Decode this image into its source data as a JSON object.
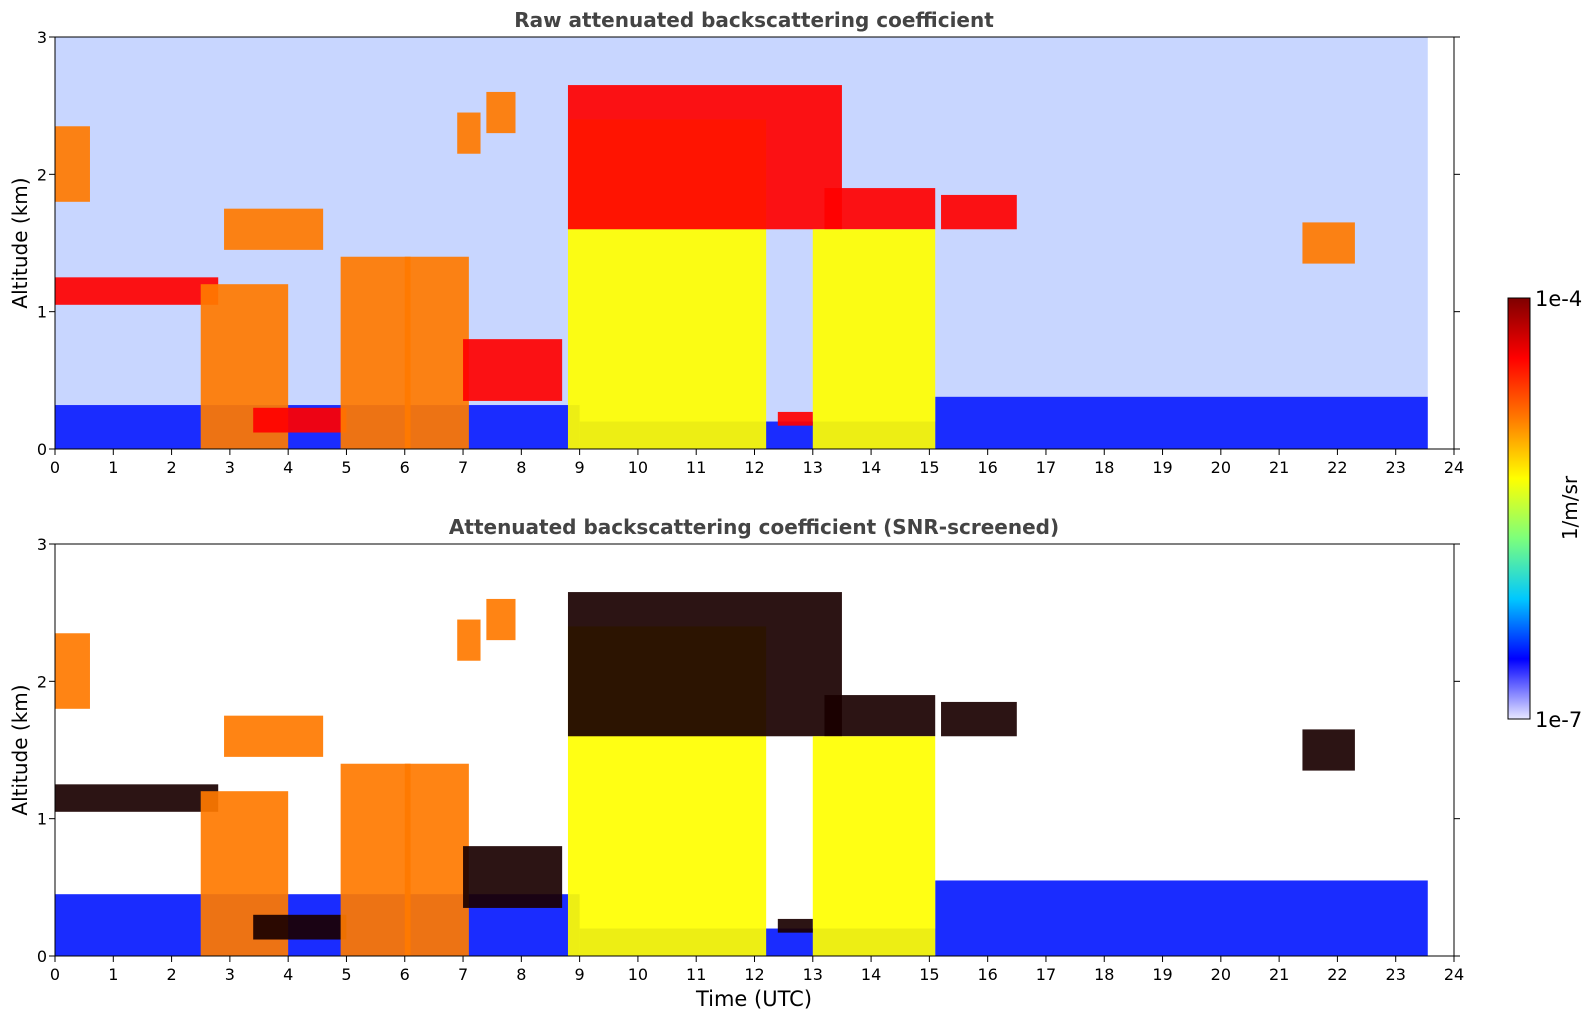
{
  "chart_data": [
    {
      "type": "heatmap",
      "title": "Raw attenuated backscattering coefficient",
      "xlabel": "",
      "ylabel": "Altitude (km)",
      "xlim": [
        0,
        24
      ],
      "ylim": [
        0,
        3
      ],
      "x_ticks": [
        "0",
        "1",
        "2",
        "3",
        "4",
        "5",
        "6",
        "7",
        "8",
        "9",
        "10",
        "11",
        "12",
        "13",
        "14",
        "15",
        "16",
        "17",
        "18",
        "19",
        "20",
        "21",
        "22",
        "23",
        "24"
      ],
      "y_ticks": [
        "0",
        "1",
        "2",
        "3"
      ],
      "data_end_time": 23.55,
      "surface_layer": {
        "segments": [
          [
            0,
            9.0,
            0.32
          ],
          [
            9.0,
            15.1,
            0.2
          ],
          [
            15.1,
            23.55,
            0.38
          ]
        ]
      },
      "cloud_layers": [
        {
          "name": "early low cloud",
          "start": 0.0,
          "end": 2.8,
          "base": 1.05,
          "top": 1.25,
          "value": 5.6
        },
        {
          "name": "early high cloud",
          "start": 0.0,
          "end": 0.6,
          "base": 1.8,
          "top": 2.35,
          "value": 5.0
        },
        {
          "name": "falling layer",
          "start": 2.5,
          "end": 4.0,
          "base": 0.0,
          "top": 1.2,
          "value": 4.7
        },
        {
          "name": "cloud 3-4h",
          "start": 2.9,
          "end": 4.6,
          "base": 1.45,
          "top": 1.75,
          "value": 5.0
        },
        {
          "name": "low cloud 3.5-5h",
          "start": 3.4,
          "end": 5.0,
          "base": 0.12,
          "top": 0.3,
          "value": 5.8
        },
        {
          "name": "column 5-6h",
          "start": 4.9,
          "end": 6.1,
          "base": 0.0,
          "top": 1.4,
          "value": 4.6
        },
        {
          "name": "column 6-7h",
          "start": 6.0,
          "end": 7.1,
          "base": 0.0,
          "top": 1.4,
          "value": 4.6
        },
        {
          "name": "cloud 7-7.3h",
          "start": 6.9,
          "end": 7.3,
          "base": 2.15,
          "top": 2.45,
          "value": 5.3
        },
        {
          "name": "cloud 7.4-7.9h",
          "start": 7.4,
          "end": 7.9,
          "base": 2.3,
          "top": 2.6,
          "value": 5.2
        },
        {
          "name": "descending layer",
          "start": 7.0,
          "end": 8.7,
          "base": 0.35,
          "top": 0.8,
          "value": 5.6
        },
        {
          "name": "precipitation 9-12h",
          "start": 8.8,
          "end": 12.2,
          "base": 0.0,
          "top": 2.4,
          "value": 4.3
        },
        {
          "name": "descending upper layer",
          "start": 8.8,
          "end": 13.5,
          "base": 1.6,
          "top": 2.65,
          "value": 6.0
        },
        {
          "name": "flat upper layer",
          "start": 13.2,
          "end": 15.1,
          "base": 1.6,
          "top": 1.9,
          "value": 6.0
        },
        {
          "name": "fall streaks 13-15h",
          "start": 13.0,
          "end": 15.1,
          "base": 0.0,
          "top": 1.6,
          "value": 4.0
        },
        {
          "name": "low cloud 12.5h",
          "start": 12.4,
          "end": 13.0,
          "base": 0.17,
          "top": 0.27,
          "value": 5.6
        },
        {
          "name": "cloud 15.2-16.5h",
          "start": 15.2,
          "end": 16.5,
          "base": 1.6,
          "top": 1.85,
          "value": 5.6
        },
        {
          "name": "cloud 21.4-22.3h",
          "start": 21.4,
          "end": 22.3,
          "base": 1.35,
          "top": 1.65,
          "value": 5.4
        }
      ]
    },
    {
      "type": "heatmap",
      "title": "Attenuated backscattering coefficient (SNR-screened)",
      "xlabel": "Time (UTC)",
      "ylabel": "Altitude (km)",
      "xlim": [
        0,
        24
      ],
      "ylim": [
        0,
        3
      ],
      "x_ticks": [
        "0",
        "1",
        "2",
        "3",
        "4",
        "5",
        "6",
        "7",
        "8",
        "9",
        "10",
        "11",
        "12",
        "13",
        "14",
        "15",
        "16",
        "17",
        "18",
        "19",
        "20",
        "21",
        "22",
        "23",
        "24"
      ],
      "y_ticks": [
        "0",
        "1",
        "2",
        "3"
      ],
      "data_end_time": 23.55,
      "surface_layer": {
        "segments": [
          [
            0,
            9.0,
            0.45
          ],
          [
            9.0,
            15.1,
            0.2
          ],
          [
            15.1,
            23.55,
            0.55
          ]
        ]
      },
      "cloud_layers": [
        {
          "name": "early low cloud",
          "start": 0.0,
          "end": 2.8,
          "base": 1.05,
          "top": 1.25,
          "value": 6.2
        },
        {
          "name": "early high cloud",
          "start": 0.0,
          "end": 0.6,
          "base": 1.8,
          "top": 2.35,
          "value": 5.0
        },
        {
          "name": "falling layer",
          "start": 2.5,
          "end": 4.0,
          "base": 0.0,
          "top": 1.2,
          "value": 4.7
        },
        {
          "name": "cloud 3-4h",
          "start": 2.9,
          "end": 4.6,
          "base": 1.45,
          "top": 1.75,
          "value": 5.3
        },
        {
          "name": "low cloud 3.5-5h",
          "start": 3.4,
          "end": 5.0,
          "base": 0.12,
          "top": 0.3,
          "value": 6.2
        },
        {
          "name": "column 5-6h",
          "start": 4.9,
          "end": 6.1,
          "base": 0.0,
          "top": 1.4,
          "value": 4.8
        },
        {
          "name": "column 6-7h",
          "start": 6.0,
          "end": 7.1,
          "base": 0.0,
          "top": 1.4,
          "value": 4.8
        },
        {
          "name": "cloud 7-7.3h",
          "start": 6.9,
          "end": 7.3,
          "base": 2.15,
          "top": 2.45,
          "value": 5.3
        },
        {
          "name": "cloud 7.4-7.9h",
          "start": 7.4,
          "end": 7.9,
          "base": 2.3,
          "top": 2.6,
          "value": 5.2
        },
        {
          "name": "descending layer",
          "start": 7.0,
          "end": 8.7,
          "base": 0.35,
          "top": 0.8,
          "value": 6.2
        },
        {
          "name": "precipitation 9-12h",
          "start": 8.8,
          "end": 12.2,
          "base": 0.0,
          "top": 2.4,
          "value": 4.3
        },
        {
          "name": "descending upper layer",
          "start": 8.8,
          "end": 13.5,
          "base": 1.6,
          "top": 2.65,
          "value": 6.3
        },
        {
          "name": "flat upper layer",
          "start": 13.2,
          "end": 15.1,
          "base": 1.6,
          "top": 1.9,
          "value": 6.3
        },
        {
          "name": "fall streaks 13-15h",
          "start": 13.0,
          "end": 15.1,
          "base": 0.0,
          "top": 1.6,
          "value": 4.0
        },
        {
          "name": "low cloud 12.5h",
          "start": 12.4,
          "end": 13.0,
          "base": 0.17,
          "top": 0.27,
          "value": 6.2
        },
        {
          "name": "cloud 15.2-16.5h",
          "start": 15.2,
          "end": 16.5,
          "base": 1.6,
          "top": 1.85,
          "value": 6.2
        },
        {
          "name": "cloud 21.4-22.3h",
          "start": 21.4,
          "end": 22.3,
          "base": 1.35,
          "top": 1.65,
          "value": 6.2
        }
      ]
    }
  ],
  "colorbar": {
    "label": "1/m/sr",
    "min_label": "1e-7",
    "max_label": "1e-4",
    "min_exponent": -7,
    "max_exponent": -4,
    "colors": [
      "#e8e8ff",
      "#0000ff",
      "#00c8ff",
      "#7cff7c",
      "#ffff00",
      "#ff7a00",
      "#ff0000",
      "#7f0000"
    ]
  }
}
